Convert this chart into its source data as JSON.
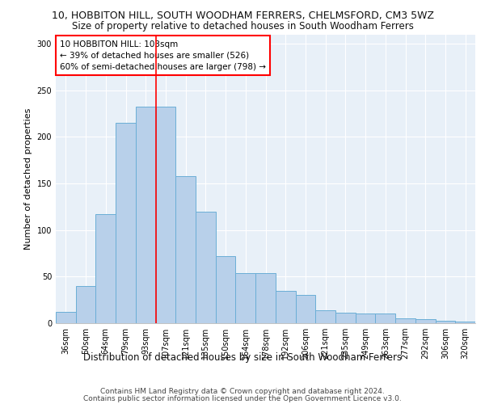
{
  "title_line1": "10, HOBBITON HILL, SOUTH WOODHAM FERRERS, CHELMSFORD, CM3 5WZ",
  "title_line2": "Size of property relative to detached houses in South Woodham Ferrers",
  "xlabel": "Distribution of detached houses by size in South Woodham Ferrers",
  "ylabel": "Number of detached properties",
  "categories": [
    "36sqm",
    "50sqm",
    "64sqm",
    "79sqm",
    "93sqm",
    "107sqm",
    "121sqm",
    "135sqm",
    "150sqm",
    "164sqm",
    "178sqm",
    "192sqm",
    "206sqm",
    "221sqm",
    "235sqm",
    "249sqm",
    "263sqm",
    "277sqm",
    "292sqm",
    "306sqm",
    "320sqm"
  ],
  "bar_values": [
    12,
    40,
    117,
    215,
    232,
    232,
    158,
    120,
    72,
    54,
    54,
    35,
    30,
    14,
    11,
    10,
    10,
    5,
    4,
    3,
    2
  ],
  "bar_color": "#b8d0ea",
  "bar_edge_color": "#6aaed6",
  "red_line_x": 4.5,
  "annotation_line1": "10 HOBBITON HILL: 103sqm",
  "annotation_line2": "← 39% of detached houses are smaller (526)",
  "annotation_line3": "60% of semi-detached houses are larger (798) →",
  "annotation_box_color": "white",
  "annotation_box_edge": "red",
  "ylim": [
    0,
    310
  ],
  "yticks": [
    0,
    50,
    100,
    150,
    200,
    250,
    300
  ],
  "footer_line1": "Contains HM Land Registry data © Crown copyright and database right 2024.",
  "footer_line2": "Contains public sector information licensed under the Open Government Licence v3.0.",
  "bg_color": "#e8f0f8",
  "title_fontsize": 9,
  "subtitle_fontsize": 8.5,
  "ylabel_fontsize": 8,
  "xlabel_fontsize": 8.5,
  "tick_fontsize": 7,
  "annotation_fontsize": 7.5,
  "footer_fontsize": 6.5
}
